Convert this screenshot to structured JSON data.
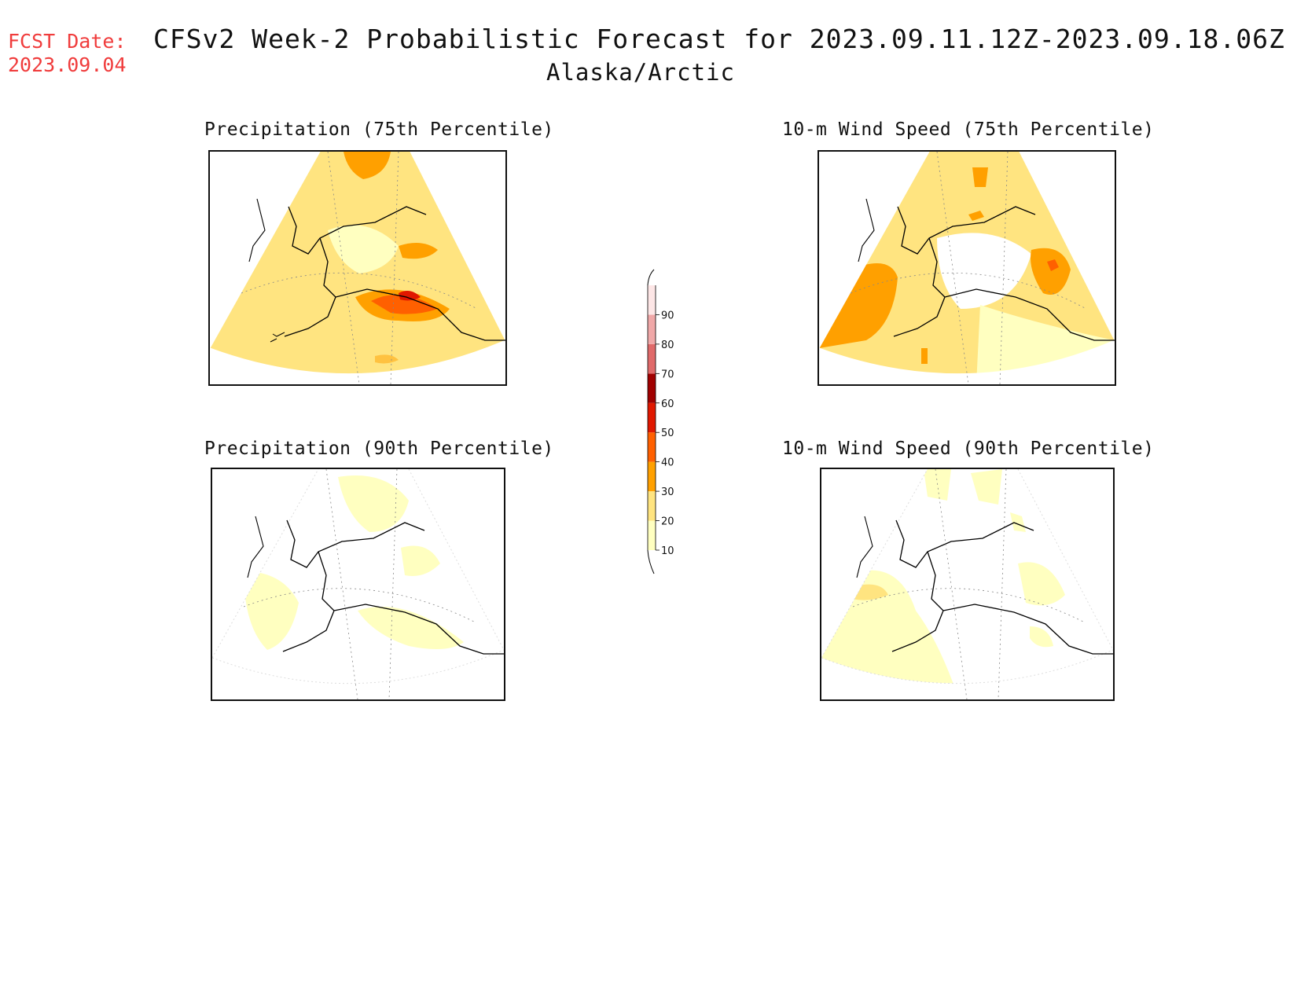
{
  "header": {
    "fcst_label": "FCST Date:",
    "fcst_date": "2023.09.04",
    "title": "CFSv2 Week-2 Probabilistic Forecast for 2023.09.11.12Z-2023.09.18.06Z",
    "subtitle": "Alaska/Arctic"
  },
  "panels": [
    {
      "title": "Precipitation (75th Percentile)"
    },
    {
      "title": "10-m Wind Speed (75th Percentile)"
    },
    {
      "title": "Precipitation (90th Percentile)"
    },
    {
      "title": "10-m Wind Speed (90th Percentile)"
    }
  ],
  "colorbar": {
    "unit": "",
    "levels": [
      "10",
      "20",
      "30",
      "40",
      "50",
      "60",
      "70",
      "80",
      "90"
    ],
    "colors": [
      "#ffffc0",
      "#ffe480",
      "#ffa000",
      "#ff6000",
      "#e01800",
      "#a00000",
      "#e06a6a",
      "#f0a8a8",
      "#fde6e6"
    ]
  }
}
